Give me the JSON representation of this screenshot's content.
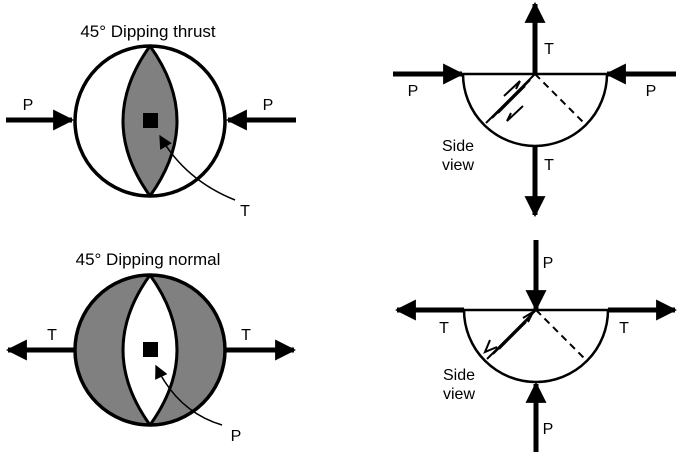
{
  "thrust": {
    "title": "45° Dipping thrust",
    "left_arrow_label": "P",
    "right_arrow_label": "P",
    "center_label": "T",
    "fill_color": "#808080"
  },
  "normal": {
    "title": "45° Dipping normal",
    "left_arrow_label": "T",
    "right_arrow_label": "T",
    "center_label": "P",
    "fill_color": "#808080"
  },
  "thrust_side": {
    "top_label": "T",
    "bottom_label": "T",
    "left_label": "P",
    "right_label": "P",
    "side_view_line1": "Side",
    "side_view_line2": "view"
  },
  "normal_side": {
    "top_label": "P",
    "bottom_label": "P",
    "left_label": "T",
    "right_label": "T",
    "side_view_line1": "Side",
    "side_view_line2": "view"
  }
}
